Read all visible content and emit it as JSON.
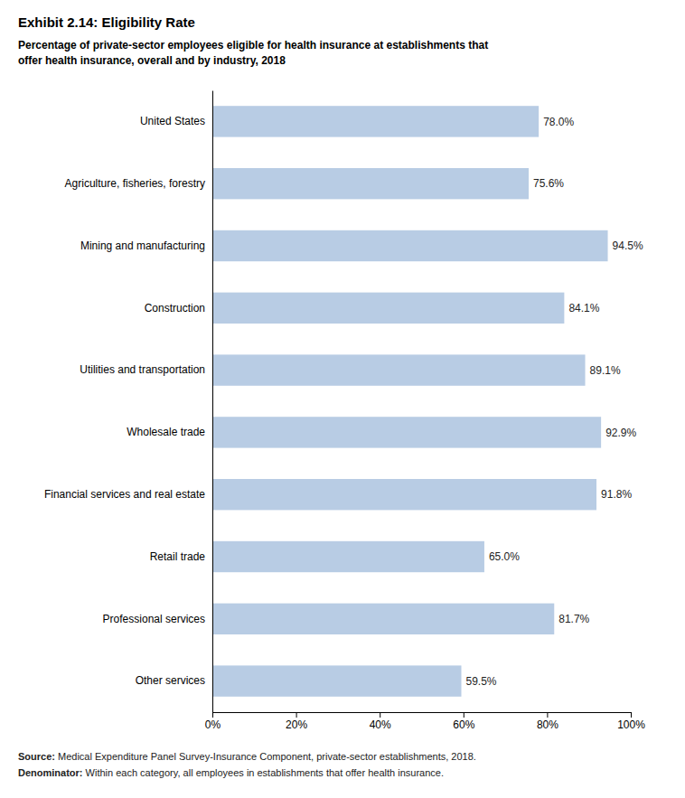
{
  "chart_data": {
    "type": "bar",
    "orientation": "horizontal",
    "title": "Exhibit 2.14: Eligibility Rate",
    "subtitle": "Percentage of private-sector employees eligible for health insurance at establishments that\noffer health insurance, overall and by industry, 2018",
    "categories": [
      "United States",
      "Agriculture, fisheries, forestry",
      "Mining and manufacturing",
      "Construction",
      "Utilities and transportation",
      "Wholesale trade",
      "Financial services and real estate",
      "Retail trade",
      "Professional services",
      "Other services"
    ],
    "values": [
      78.0,
      75.6,
      94.5,
      84.1,
      89.1,
      92.9,
      91.8,
      65.0,
      81.7,
      59.5
    ],
    "value_labels": [
      "78.0%",
      "75.6%",
      "94.5%",
      "84.1%",
      "89.1%",
      "92.9%",
      "91.8%",
      "65.0%",
      "81.7%",
      "59.5%"
    ],
    "data_labels": true,
    "color": "#b8cce4",
    "xlim": [
      0,
      100
    ],
    "xticks": [
      {
        "value": 0,
        "label": "0%"
      },
      {
        "value": 20,
        "label": "20%"
      },
      {
        "value": 40,
        "label": "40%"
      },
      {
        "value": 60,
        "label": "60%"
      },
      {
        "value": 80,
        "label": "80%"
      },
      {
        "value": 100,
        "label": "100%"
      }
    ],
    "grid": false,
    "annotations": [
      [
        "Source:",
        " Medical Expenditure Panel Survey-Insurance Component, private-sector establishments, 2018."
      ],
      [
        "Denominator:",
        " Within each category, all employees in establishments that offer health insurance."
      ]
    ]
  }
}
